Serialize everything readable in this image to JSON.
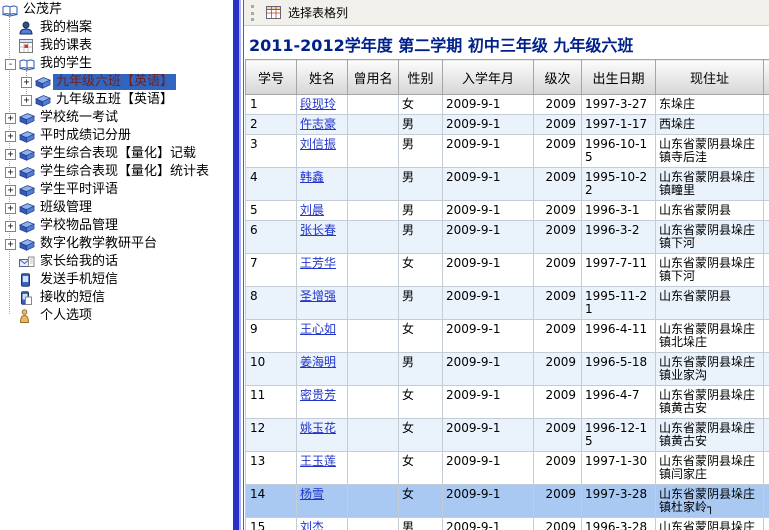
{
  "sidebar": {
    "items": [
      {
        "label": "公茂芹",
        "icon": "book-open",
        "depth": 0,
        "expander": null,
        "selected": false
      },
      {
        "label": "我的档案",
        "icon": "profile",
        "depth": 1,
        "expander": null,
        "selected": false
      },
      {
        "label": "我的课表",
        "icon": "schedule",
        "depth": 1,
        "expander": null,
        "selected": false
      },
      {
        "label": "我的学生",
        "icon": "book-open",
        "depth": 1,
        "expander": "minus",
        "selected": false
      },
      {
        "label": "九年级六班【英语】",
        "icon": "book",
        "depth": 2,
        "expander": "plus",
        "selected": true
      },
      {
        "label": "九年级五班【英语】",
        "icon": "book",
        "depth": 2,
        "expander": "plus",
        "selected": false
      },
      {
        "label": "学校统一考试",
        "icon": "book",
        "depth": 1,
        "expander": "plus",
        "selected": false
      },
      {
        "label": "平时成绩记分册",
        "icon": "book",
        "depth": 1,
        "expander": "plus",
        "selected": false
      },
      {
        "label": "学生综合表现【量化】记载",
        "icon": "book",
        "depth": 1,
        "expander": "plus",
        "selected": false
      },
      {
        "label": "学生综合表现【量化】统计表",
        "icon": "book",
        "depth": 1,
        "expander": "plus",
        "selected": false
      },
      {
        "label": "学生平时评语",
        "icon": "book",
        "depth": 1,
        "expander": "plus",
        "selected": false
      },
      {
        "label": "班级管理",
        "icon": "book",
        "depth": 1,
        "expander": "plus",
        "selected": false
      },
      {
        "label": "学校物品管理",
        "icon": "book",
        "depth": 1,
        "expander": "plus",
        "selected": false
      },
      {
        "label": "数字化教学教研平台",
        "icon": "book",
        "depth": 1,
        "expander": "plus",
        "selected": false
      },
      {
        "label": "家长给我的话",
        "icon": "mail",
        "depth": 1,
        "expander": null,
        "selected": false
      },
      {
        "label": "发送手机短信",
        "icon": "phone-send",
        "depth": 1,
        "expander": null,
        "selected": false
      },
      {
        "label": "接收的短信",
        "icon": "phone-receive",
        "depth": 1,
        "expander": null,
        "selected": false
      },
      {
        "label": "个人选项",
        "icon": "person",
        "depth": 1,
        "expander": null,
        "selected": false
      }
    ]
  },
  "toolbar": {
    "button_label": "选择表格列"
  },
  "content": {
    "title": "2011-2012学年度 第二学期 初中三年级 九年级六班"
  },
  "table": {
    "headers": [
      "学号",
      "姓名",
      "曾用名",
      "性别",
      "入学年月",
      "级次",
      "出生日期",
      "现住址",
      ""
    ],
    "rows": [
      {
        "no": "1",
        "name": "段现玲",
        "former": "",
        "gender": "女",
        "enroll": "2009-9-1",
        "grade": "2009",
        "birth": "1997-3-27",
        "address": "东垛庄",
        "selected": false
      },
      {
        "no": "2",
        "name": "仵志豪",
        "former": "",
        "gender": "男",
        "enroll": "2009-9-1",
        "grade": "2009",
        "birth": "1997-1-17",
        "address": "西垛庄",
        "selected": false
      },
      {
        "no": "3",
        "name": "刘信振",
        "former": "",
        "gender": "男",
        "enroll": "2009-9-1",
        "grade": "2009",
        "birth": "1996-10-15",
        "address": "山东省蒙阴县垛庄镇寺后洼",
        "selected": false
      },
      {
        "no": "4",
        "name": "韩鑫",
        "former": "",
        "gender": "男",
        "enroll": "2009-9-1",
        "grade": "2009",
        "birth": "1995-10-22",
        "address": "山东省蒙阴县垛庄镇疃里",
        "selected": false
      },
      {
        "no": "5",
        "name": "刘晨",
        "former": "",
        "gender": "男",
        "enroll": "2009-9-1",
        "grade": "2009",
        "birth": "1996-3-1",
        "address": "山东省蒙阴县",
        "selected": false
      },
      {
        "no": "6",
        "name": "张长春",
        "former": "",
        "gender": "男",
        "enroll": "2009-9-1",
        "grade": "2009",
        "birth": "1996-3-2",
        "address": "山东省蒙阴县垛庄镇下河",
        "selected": false
      },
      {
        "no": "7",
        "name": "王芳华",
        "former": "",
        "gender": "女",
        "enroll": "2009-9-1",
        "grade": "2009",
        "birth": "1997-7-11",
        "address": "山东省蒙阴县垛庄镇下河",
        "selected": false
      },
      {
        "no": "8",
        "name": "圣增强",
        "former": "",
        "gender": "男",
        "enroll": "2009-9-1",
        "grade": "2009",
        "birth": "1995-11-21",
        "address": "山东省蒙阴县",
        "selected": false
      },
      {
        "no": "9",
        "name": "王心如",
        "former": "",
        "gender": "女",
        "enroll": "2009-9-1",
        "grade": "2009",
        "birth": "1996-4-11",
        "address": "山东省蒙阴县垛庄镇北垛庄",
        "selected": false
      },
      {
        "no": "10",
        "name": "姜海明",
        "former": "",
        "gender": "男",
        "enroll": "2009-9-1",
        "grade": "2009",
        "birth": "1996-5-18",
        "address": "山东省蒙阴县垛庄镇业家沟",
        "selected": false
      },
      {
        "no": "11",
        "name": "密贵芳",
        "former": "",
        "gender": "女",
        "enroll": "2009-9-1",
        "grade": "2009",
        "birth": "1996-4-7",
        "address": "山东省蒙阴县垛庄镇黄古安",
        "selected": false
      },
      {
        "no": "12",
        "name": "姚玉花",
        "former": "",
        "gender": "女",
        "enroll": "2009-9-1",
        "grade": "2009",
        "birth": "1996-12-15",
        "address": "山东省蒙阴县垛庄镇黄古安",
        "selected": false
      },
      {
        "no": "13",
        "name": "王玉莲",
        "former": "",
        "gender": "女",
        "enroll": "2009-9-1",
        "grade": "2009",
        "birth": "1997-1-30",
        "address": "山东省蒙阴县垛庄镇闫家庄",
        "selected": false
      },
      {
        "no": "14",
        "name": "杨雪",
        "former": "",
        "gender": "女",
        "enroll": "2009-9-1",
        "grade": "2009",
        "birth": "1997-3-28",
        "address": "山东省蒙阴县垛庄镇杜家岭┐",
        "selected": true
      },
      {
        "no": "15",
        "name": "刘杰",
        "former": "",
        "gender": "男",
        "enroll": "2009-9-1",
        "grade": "2009",
        "birth": "1996-3-28",
        "address": "山东省蒙阴县垛庄镇石山庄",
        "selected": false
      }
    ]
  },
  "colors": {
    "splitter_blue": "#2A2FC8",
    "selection_bg": "#3265C0",
    "selection_text": "#6E2222",
    "selected_row": "#A9C9F2",
    "row_stripe": "#EAF2FB",
    "title": "#00218A",
    "link": "#2135CB"
  }
}
